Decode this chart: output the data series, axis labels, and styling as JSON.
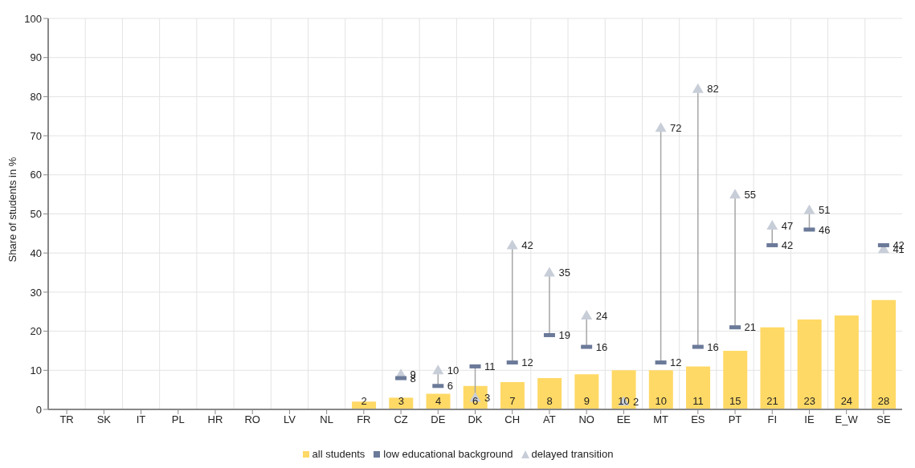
{
  "chart_data": {
    "type": "bar",
    "ylabel": "Share of students in %",
    "categories": [
      "TR",
      "SK",
      "IT",
      "PL",
      "HR",
      "RO",
      "LV",
      "NL",
      "FR",
      "CZ",
      "DE",
      "DK",
      "CH",
      "AT",
      "NO",
      "EE",
      "MT",
      "ES",
      "PT",
      "FI",
      "IE",
      "E_W",
      "SE"
    ],
    "series": [
      {
        "name": "all students",
        "color": "#ffd966",
        "values": [
          null,
          null,
          null,
          null,
          null,
          null,
          null,
          null,
          2,
          3,
          4,
          6,
          7,
          8,
          9,
          10,
          10,
          11,
          15,
          21,
          23,
          24,
          28
        ]
      },
      {
        "name": "low educational background",
        "type": "scatter",
        "marker": "square",
        "color": "#6b7a99",
        "values": [
          null,
          null,
          null,
          null,
          null,
          null,
          null,
          null,
          null,
          8,
          6,
          11,
          12,
          19,
          16,
          null,
          12,
          16,
          21,
          42,
          46,
          null,
          42
        ]
      },
      {
        "name": "delayed transition",
        "type": "scatter",
        "marker": "triangle",
        "color": "#c8ced8",
        "values": [
          null,
          null,
          null,
          null,
          null,
          null,
          null,
          null,
          null,
          9,
          10,
          3,
          42,
          35,
          24,
          2,
          72,
          82,
          55,
          47,
          51,
          null,
          41
        ]
      }
    ],
    "ylim": [
      0,
      100
    ],
    "yticks": [
      0,
      10,
      20,
      30,
      40,
      50,
      60,
      70,
      80,
      90,
      100
    ],
    "grid": true,
    "legend": "bottom",
    "data_labels": true
  }
}
